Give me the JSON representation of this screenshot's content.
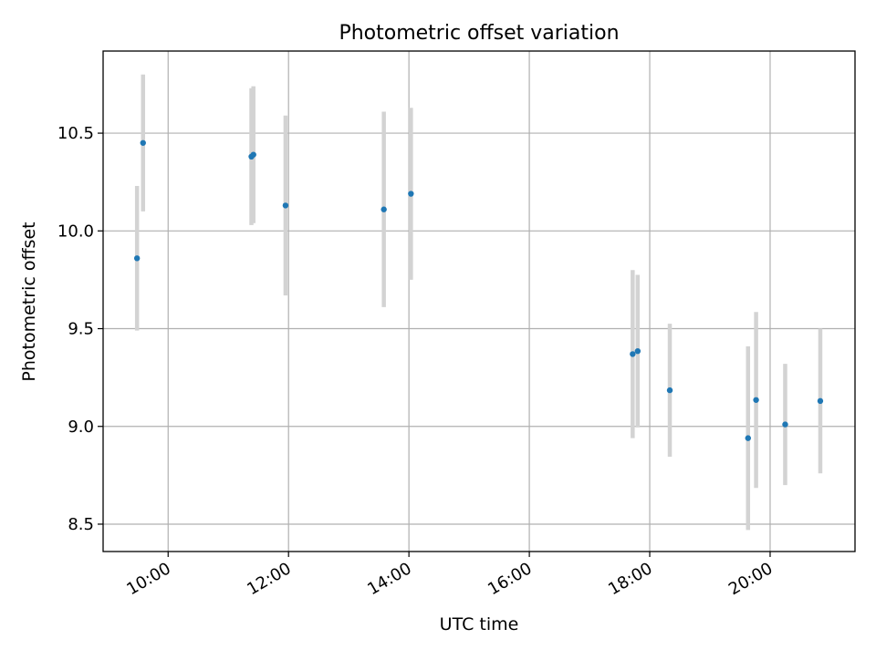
{
  "chart_data": {
    "type": "scatter",
    "title": "Photometric offset variation",
    "xlabel": "UTC time",
    "ylabel": "Photometric offset",
    "x_tick_labels": [
      "10:00",
      "12:00",
      "14:00",
      "16:00",
      "18:00",
      "20:00"
    ],
    "x_tick_hours": [
      10,
      12,
      14,
      16,
      18,
      20
    ],
    "y_tick_labels": [
      "8.5",
      "9.0",
      "9.5",
      "10.0",
      "10.5"
    ],
    "y_ticks": [
      8.5,
      9.0,
      9.5,
      10.0,
      10.5
    ],
    "xlim_hours": [
      8.92,
      21.41
    ],
    "ylim": [
      8.36,
      10.92
    ],
    "grid": true,
    "series": [
      {
        "marker_color": "#1f77b4",
        "errorbar_color": "#d3d3d3",
        "points": [
          {
            "x": "09:29",
            "y": 9.86,
            "yerr": 0.37
          },
          {
            "x": "09:35",
            "y": 10.45,
            "yerr": 0.35
          },
          {
            "x": "11:23",
            "y": 10.38,
            "yerr": 0.35
          },
          {
            "x": "11:25",
            "y": 10.39,
            "yerr": 0.35
          },
          {
            "x": "11:57",
            "y": 10.13,
            "yerr": 0.46
          },
          {
            "x": "13:35",
            "y": 10.11,
            "yerr": 0.5
          },
          {
            "x": "14:02",
            "y": 10.19,
            "yerr": 0.44
          },
          {
            "x": "17:43",
            "y": 9.37,
            "yerr": 0.43
          },
          {
            "x": "17:48",
            "y": 9.385,
            "yerr": 0.39
          },
          {
            "x": "18:20",
            "y": 9.185,
            "yerr": 0.34
          },
          {
            "x": "19:38",
            "y": 8.94,
            "yerr": 0.47
          },
          {
            "x": "19:46",
            "y": 9.135,
            "yerr": 0.45
          },
          {
            "x": "20:15",
            "y": 9.01,
            "yerr": 0.31
          },
          {
            "x": "20:50",
            "y": 9.13,
            "yerr": 0.37
          }
        ]
      }
    ]
  }
}
